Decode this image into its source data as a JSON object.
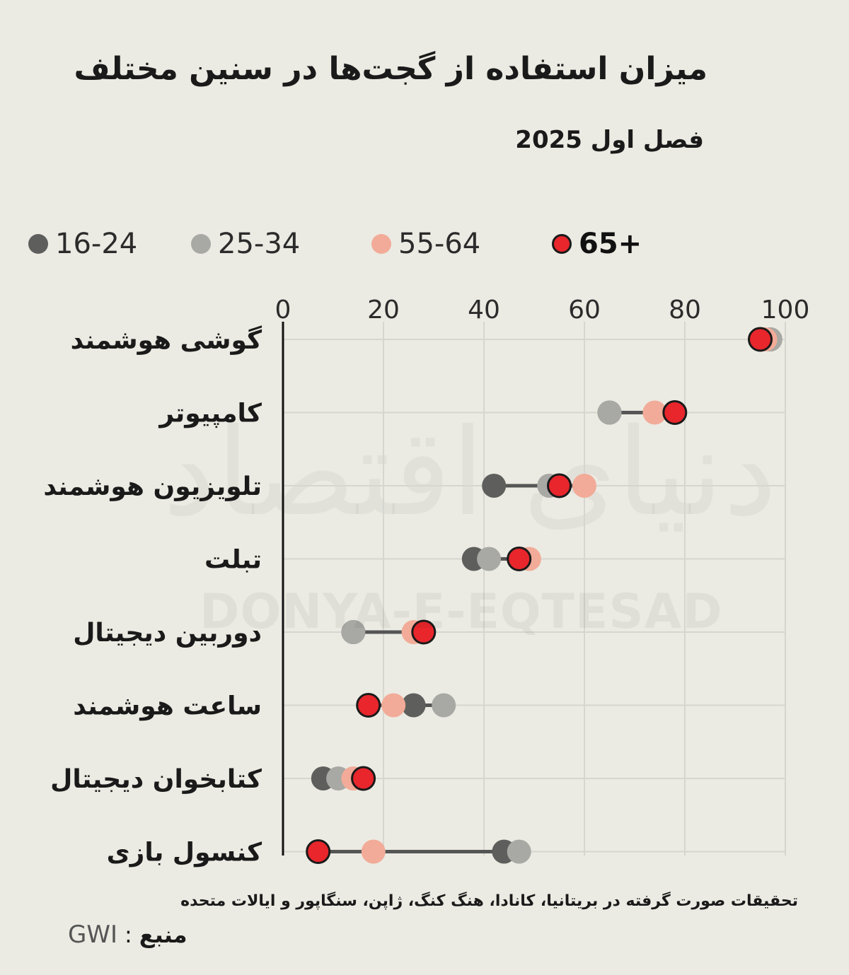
{
  "header": {
    "title": "میزان استفاده از گجت‌ها در سنین مختلف",
    "subtitle": "فصل اول 2025"
  },
  "watermark": {
    "text": "DONYA-E-EQTESAD",
    "logo": "دنیای اقتصاد"
  },
  "footer": {
    "note": "تحقیقات صورت گرفته در بریتانیا، کانادا، هنگ کنگ، ژاپن، سنگاپور و ایالات متحده",
    "source_value": "GWI",
    "source_sep": ":",
    "source_label": "منبع"
  },
  "colors": {
    "background": "#ebebe3",
    "grid": "#d6d6d0",
    "axis": "#111111",
    "connector": "#555555",
    "s16_24": "#5e5f5c",
    "s25_34": "#a8a8a4",
    "s55_64": "#f2ab98",
    "s65": "#e8262c"
  },
  "chart_data": {
    "type": "dot",
    "title": "میزان استفاده از گجت‌ها در سنین مختلف",
    "subtitle": "فصل اول 2025",
    "categories": [
      "گوشی هوشمند",
      "کامپیوتر",
      "تلویزیون هوشمند",
      "تبلت",
      "دوربین دیجیتال",
      "ساعت هوشمند",
      "کتابخوان دیجیتال",
      "کنسول بازی"
    ],
    "series": [
      {
        "name": "16-24",
        "color": "#5e5f5c",
        "values": [
          97,
          65,
          42,
          38,
          14,
          26,
          8,
          44
        ]
      },
      {
        "name": "25-34",
        "color": "#a8a8a4",
        "values": [
          97,
          65,
          53,
          41,
          14,
          32,
          11,
          47
        ]
      },
      {
        "name": "55-64",
        "color": "#f2ab98",
        "values": [
          96,
          74,
          60,
          49,
          26,
          22,
          14,
          18
        ]
      },
      {
        "name": "65+",
        "color": "#e8262c",
        "values": [
          95,
          78,
          55,
          47,
          28,
          17,
          16,
          7
        ]
      }
    ],
    "xticks": [
      0,
      20,
      40,
      60,
      80,
      100
    ],
    "xlim": [
      0,
      100
    ],
    "grid": true,
    "legend_position": "top"
  }
}
